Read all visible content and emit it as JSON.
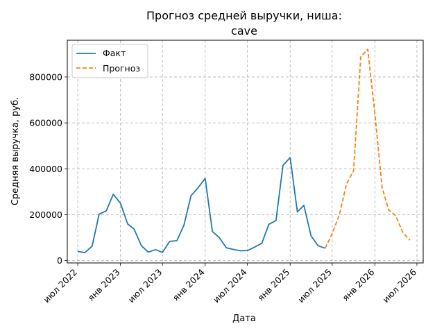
{
  "chart_data": {
    "type": "line",
    "title_line1": "Прогноз средней выручки, ниша:",
    "title_line2": "cave",
    "xlabel": "Дата",
    "ylabel": "Средняя выручка, руб.",
    "grid": true,
    "legend_position": "top-left",
    "ylim": [
      -10000,
      960000
    ],
    "yticks": [
      0,
      200000,
      400000,
      600000,
      800000
    ],
    "ytick_labels": [
      "0",
      "200000",
      "400000",
      "600000",
      "800000"
    ],
    "xlim": [
      "2022-05-17",
      "2026-07-28"
    ],
    "xticks": [
      "2022-07-01",
      "2023-01-01",
      "2023-07-01",
      "2024-01-01",
      "2024-07-01",
      "2025-01-01",
      "2025-07-01",
      "2026-01-01",
      "2026-07-01"
    ],
    "xtick_labels": [
      "июл 2022",
      "янв 2023",
      "июл 2023",
      "янв 2024",
      "июл 2024",
      "янв 2025",
      "июл 2025",
      "янв 2026",
      "июл 2026"
    ],
    "series": [
      {
        "name": "Факт",
        "color": "#1f77b4",
        "style": "solid",
        "points": [
          [
            "2022-07-01",
            40000
          ],
          [
            "2022-08-01",
            35000
          ],
          [
            "2022-09-01",
            63000
          ],
          [
            "2022-10-01",
            202000
          ],
          [
            "2022-11-01",
            217000
          ],
          [
            "2022-12-01",
            289000
          ],
          [
            "2023-01-01",
            250000
          ],
          [
            "2023-02-01",
            160000
          ],
          [
            "2023-03-01",
            137000
          ],
          [
            "2023-04-01",
            65000
          ],
          [
            "2023-05-01",
            37000
          ],
          [
            "2023-06-01",
            48000
          ],
          [
            "2023-07-01",
            36000
          ],
          [
            "2023-08-01",
            84000
          ],
          [
            "2023-09-01",
            87000
          ],
          [
            "2023-10-01",
            153000
          ],
          [
            "2023-11-01",
            283000
          ],
          [
            "2023-12-01",
            317000
          ],
          [
            "2024-01-01",
            358000
          ],
          [
            "2024-02-01",
            127000
          ],
          [
            "2024-03-01",
            101000
          ],
          [
            "2024-04-01",
            56000
          ],
          [
            "2024-05-01",
            49000
          ],
          [
            "2024-06-01",
            43000
          ],
          [
            "2024-07-01",
            44000
          ],
          [
            "2024-08-01",
            59000
          ],
          [
            "2024-09-01",
            76000
          ],
          [
            "2024-10-01",
            158000
          ],
          [
            "2024-11-01",
            175000
          ],
          [
            "2024-12-01",
            415000
          ],
          [
            "2025-01-01",
            449000
          ],
          [
            "2025-02-01",
            212000
          ],
          [
            "2025-03-01",
            241000
          ],
          [
            "2025-04-01",
            108000
          ],
          [
            "2025-05-01",
            65000
          ],
          [
            "2025-06-01",
            54000
          ]
        ]
      },
      {
        "name": "Прогноз",
        "color": "#ff7f0e",
        "style": "dashed",
        "points": [
          [
            "2025-06-01",
            54000
          ],
          [
            "2025-07-01",
            118000
          ],
          [
            "2025-08-01",
            200000
          ],
          [
            "2025-09-01",
            335000
          ],
          [
            "2025-10-01",
            391000
          ],
          [
            "2025-11-01",
            887000
          ],
          [
            "2025-12-01",
            921000
          ],
          [
            "2026-01-01",
            640000
          ],
          [
            "2026-02-01",
            318000
          ],
          [
            "2026-03-01",
            222000
          ],
          [
            "2026-04-01",
            195000
          ],
          [
            "2026-05-01",
            123000
          ],
          [
            "2026-06-01",
            89000
          ]
        ]
      }
    ]
  }
}
